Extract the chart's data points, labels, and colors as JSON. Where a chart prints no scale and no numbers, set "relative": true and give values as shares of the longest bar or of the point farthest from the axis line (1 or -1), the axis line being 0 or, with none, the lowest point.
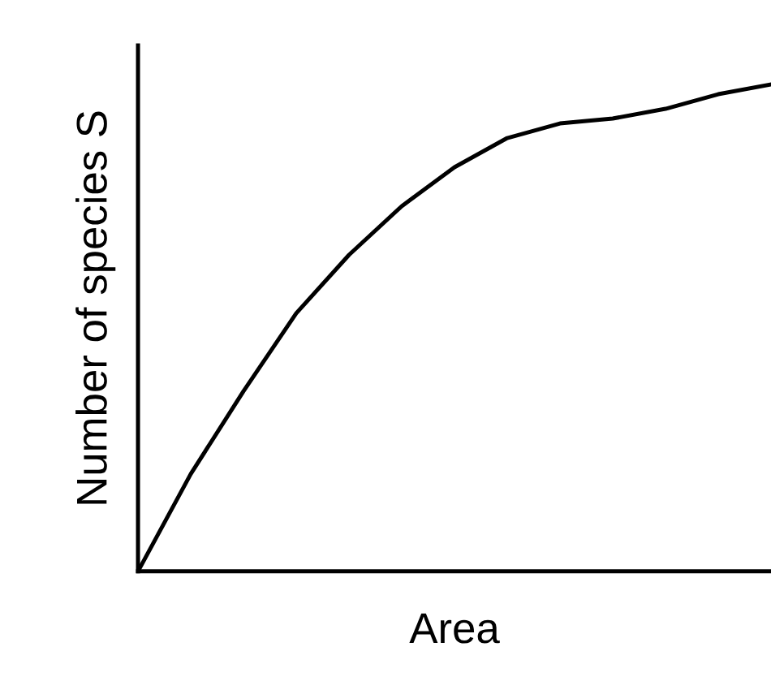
{
  "chart_data": {
    "type": "line",
    "relative": true,
    "xlabel": "Area",
    "ylabel": "Number of species S",
    "categories": [
      null,
      null,
      null,
      null,
      null,
      null,
      null,
      null,
      null,
      null,
      null,
      null,
      null
    ],
    "series": [
      {
        "color": "#000000",
        "values": [
          0,
          0.2,
          0.37,
          0.53,
          0.65,
          0.75,
          0.83,
          0.89,
          0.92,
          0.93,
          0.95,
          0.98,
          1.0
        ]
      }
    ]
  }
}
